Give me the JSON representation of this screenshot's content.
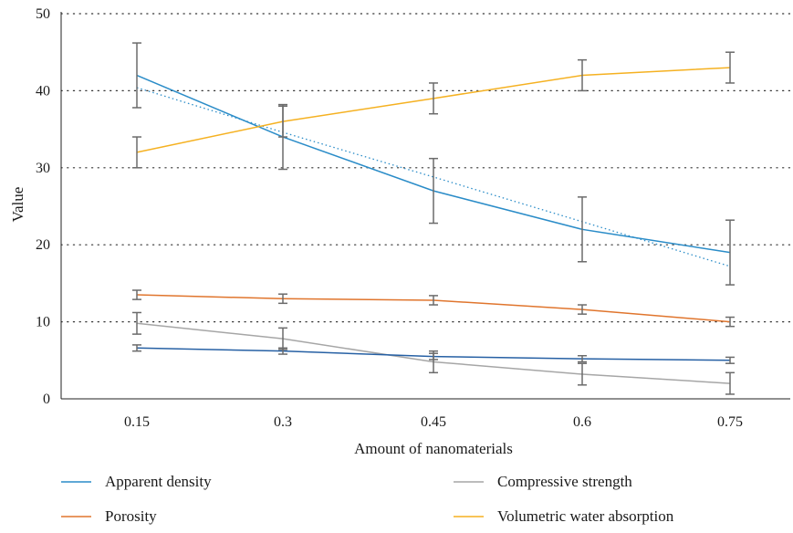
{
  "chart_data": {
    "type": "line",
    "xlabel": "Amount of nanomaterials",
    "ylabel": "Value",
    "categories": [
      "0.15",
      "0.3",
      "0.45",
      "0.6",
      "0.75"
    ],
    "ylim": [
      0,
      50
    ],
    "yticks": [
      0,
      10,
      20,
      30,
      40,
      50
    ],
    "grid": "horizontal dotted",
    "legend_position": "bottom",
    "series": [
      {
        "name": "Apparent density",
        "color": "#2a8cc8",
        "values": [
          42,
          34,
          27,
          22,
          19
        ],
        "error": [
          4.2,
          4.2,
          4.2,
          4.2,
          4.2
        ],
        "trendline": [
          40.4,
          34.6,
          28.8,
          23.0,
          17.2
        ]
      },
      {
        "name": "Porosity",
        "color": "#e0752d",
        "values": [
          13.5,
          13.0,
          12.8,
          11.6,
          10.0
        ],
        "error": [
          0.6,
          0.6,
          0.6,
          0.6,
          0.6
        ]
      },
      {
        "name": "Compressive strength",
        "color": "#a6a6a6",
        "values": [
          9.8,
          7.8,
          4.8,
          3.2,
          2.0
        ],
        "error": [
          1.4,
          1.4,
          1.4,
          1.4,
          1.4
        ]
      },
      {
        "name": "Volumetric water absorption",
        "color": "#f5b121",
        "values": [
          32,
          36,
          39,
          42,
          43
        ],
        "error": [
          2,
          2,
          2,
          2,
          2
        ]
      },
      {
        "name": "",
        "color": "#2660a4",
        "values": [
          6.6,
          6.2,
          5.5,
          5.2,
          5.0
        ],
        "error": [
          0.4,
          0.4,
          0.4,
          0.4,
          0.4
        ]
      }
    ],
    "legend_order": [
      0,
      2,
      1,
      3
    ]
  }
}
